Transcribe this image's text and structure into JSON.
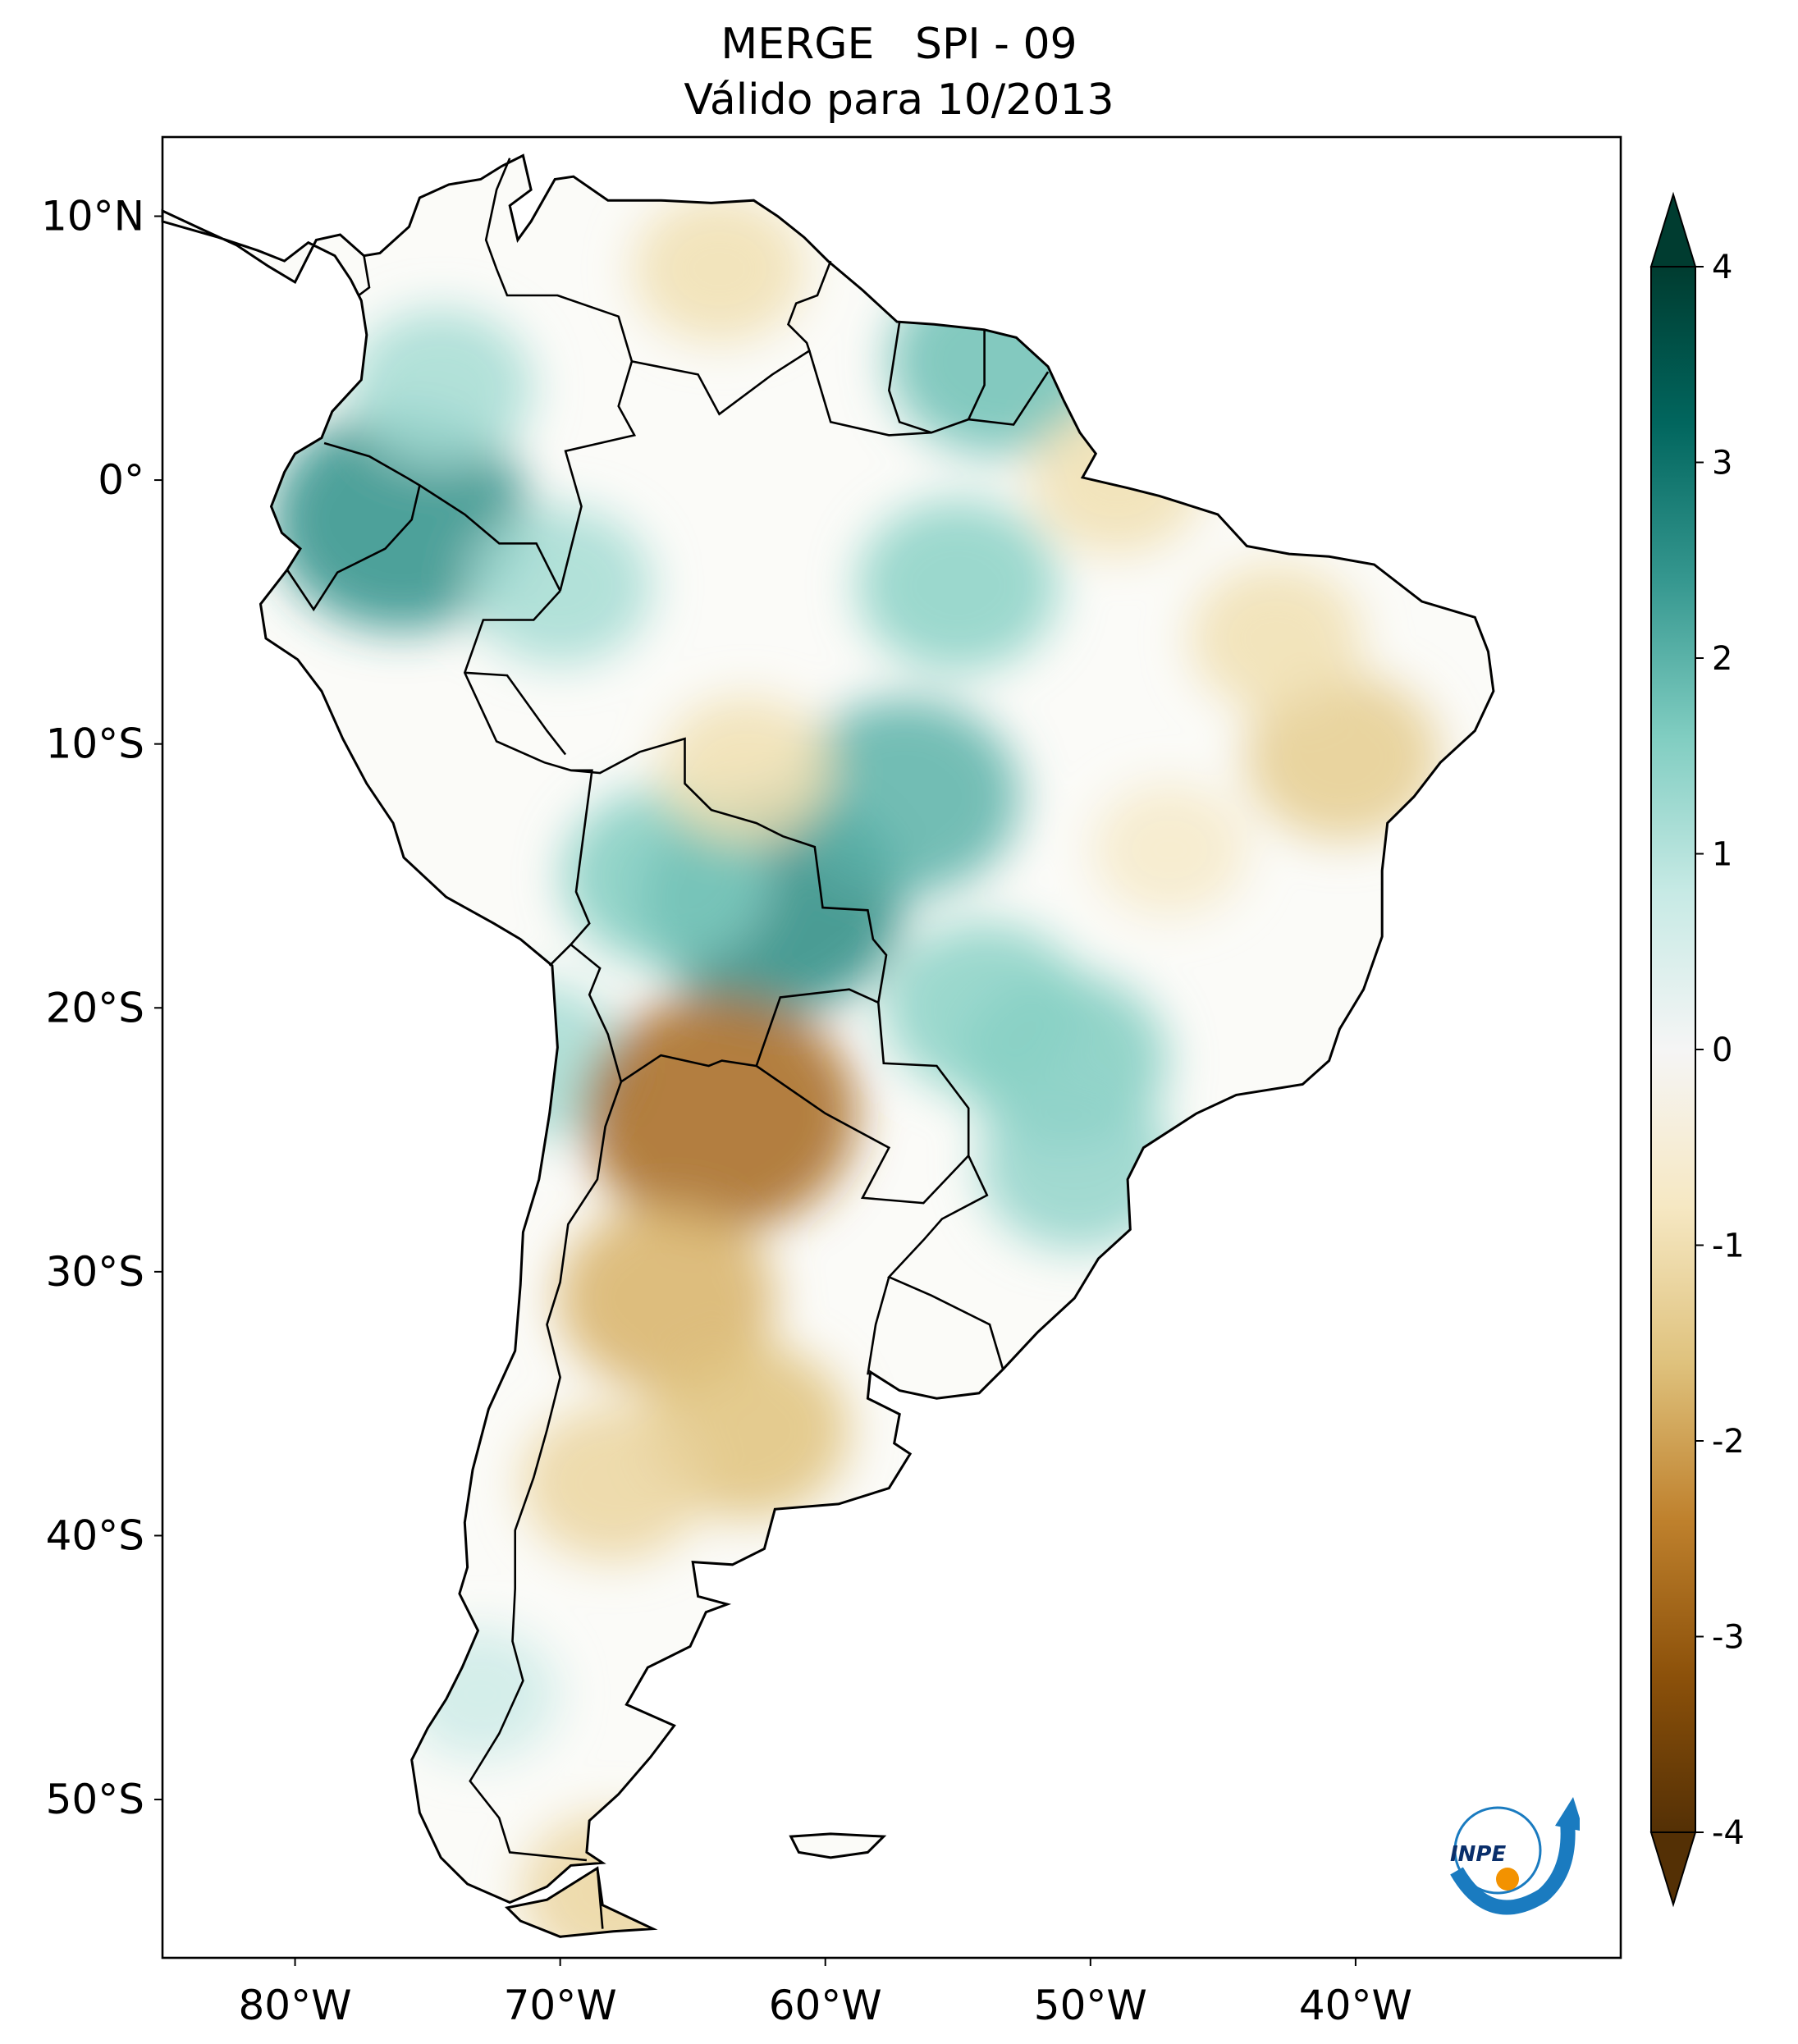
{
  "header": {
    "title": "MERGE   SPI - 09",
    "subtitle": "Válido para 10/2013"
  },
  "map": {
    "region": "South America",
    "projection": "PlateCarree",
    "lon_range": [
      -85,
      -30
    ],
    "lat_range": [
      -56,
      13
    ],
    "lat_ticks": [
      {
        "value": 10,
        "label": "10°N"
      },
      {
        "value": 0,
        "label": "0°"
      },
      {
        "value": -10,
        "label": "10°S"
      },
      {
        "value": -20,
        "label": "20°S"
      },
      {
        "value": -30,
        "label": "30°S"
      },
      {
        "value": -40,
        "label": "40°S"
      },
      {
        "value": -50,
        "label": "50°S"
      }
    ],
    "lon_ticks": [
      {
        "value": -80,
        "label": "80°W"
      },
      {
        "value": -70,
        "label": "70°W"
      },
      {
        "value": -60,
        "label": "60°W"
      },
      {
        "value": -50,
        "label": "50°W"
      },
      {
        "value": -40,
        "label": "40°W"
      }
    ],
    "anomaly_regions": [
      {
        "lon": -76,
        "lat": -1.5,
        "value": 2.5
      },
      {
        "lon": -74.5,
        "lat": 3.5,
        "value": 1.2
      },
      {
        "lon": -70,
        "lat": -4,
        "value": 1.2
      },
      {
        "lon": -62,
        "lat": -16,
        "value": 2.6
      },
      {
        "lon": -66,
        "lat": -15,
        "value": 1.6
      },
      {
        "lon": -57,
        "lat": -12,
        "value": 2.0
      },
      {
        "lon": -55,
        "lat": -4,
        "value": 1.5
      },
      {
        "lon": -53.5,
        "lat": 4.5,
        "value": 1.8
      },
      {
        "lon": -51,
        "lat": -22,
        "value": 1.6
      },
      {
        "lon": -54,
        "lat": -20,
        "value": 1.5
      },
      {
        "lon": -50.5,
        "lat": -26,
        "value": 1.4
      },
      {
        "lon": -71,
        "lat": -22,
        "value": 1.2
      },
      {
        "lon": -73,
        "lat": -46,
        "value": 0.7
      },
      {
        "lon": -64,
        "lat": -24,
        "value": -2.8
      },
      {
        "lon": -66,
        "lat": -31,
        "value": -1.8
      },
      {
        "lon": -63,
        "lat": -36,
        "value": -1.6
      },
      {
        "lon": -68,
        "lat": -38,
        "value": -1.2
      },
      {
        "lon": -40.5,
        "lat": -10.5,
        "value": -1.4
      },
      {
        "lon": -43,
        "lat": -6,
        "value": -1.0
      },
      {
        "lon": -64,
        "lat": 8,
        "value": -1.0
      },
      {
        "lon": -49,
        "lat": 0,
        "value": -1.0
      },
      {
        "lon": -47,
        "lat": -14,
        "value": -0.7
      },
      {
        "lon": -63,
        "lat": -11,
        "value": -1.0
      },
      {
        "lon": -68,
        "lat": -53.5,
        "value": -1.2
      }
    ]
  },
  "colorbar": {
    "ticks": [
      "4",
      "3",
      "2",
      "1",
      "0",
      "-1",
      "-2",
      "-3",
      "-4"
    ],
    "min": -4,
    "max": 4,
    "extend": "both",
    "colors": [
      "#543005",
      "#8c510a",
      "#bf812d",
      "#dfc27d",
      "#f6e8c3",
      "#f5f5f5",
      "#c7eae5",
      "#80cdc1",
      "#35978f",
      "#01665e",
      "#003c30"
    ]
  },
  "logo": {
    "text": "INPE",
    "colors": {
      "blue": "#1a7bc0",
      "orange": "#f39200"
    }
  }
}
